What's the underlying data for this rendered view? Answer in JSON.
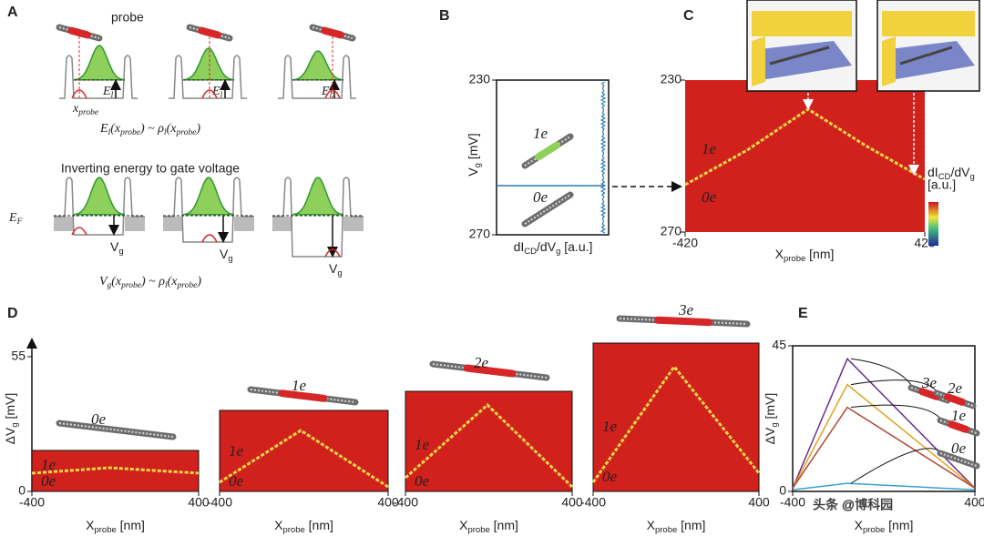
{
  "figure": {
    "A": {
      "label": "A",
      "probe": "probe",
      "x_probe": [
        "x",
        "probe"
      ],
      "E_l": [
        "E",
        "l"
      ],
      "equation_1": [
        "E",
        "l",
        "(x",
        "probe",
        ") ~ ρ",
        "l",
        "(x",
        "probe",
        ")"
      ],
      "subtitle": "Inverting energy to gate voltage",
      "E_F": [
        "E",
        "F"
      ],
      "V_g": [
        "V",
        "g"
      ],
      "equation_2": [
        "V",
        "g",
        "(x",
        "probe",
        ") ~ ρ",
        "l",
        "(x",
        "probe",
        ")"
      ]
    },
    "B": {
      "label": "B",
      "ylim": [
        230,
        270
      ],
      "yticks": [
        230,
        270
      ],
      "ylabel": [
        "V",
        "g",
        " [mV]"
      ],
      "xlabel": [
        "dI",
        "CD",
        "/dV",
        "g",
        " [a.u.]"
      ],
      "state_1": "1e",
      "state_0": "0e"
    },
    "C": {
      "label": "C",
      "xlim": [
        -420,
        420
      ],
      "xticks": [
        -420,
        420
      ],
      "ylim": [
        230,
        270
      ],
      "yticks": [
        230,
        270
      ],
      "xlabel": [
        "X",
        "probe",
        " [nm]"
      ],
      "state_1": "1e",
      "state_0": "0e",
      "colorbar_label": [
        "dI",
        "CD",
        "/dV",
        "g"
      ],
      "colorbar_unit": "[a.u.]"
    },
    "D": {
      "label": "D",
      "ylim": [
        0,
        55
      ],
      "yticks": [
        0,
        55
      ],
      "ylabel": [
        "ΔV",
        "g",
        " [mV]"
      ],
      "xlim": [
        -400,
        400
      ],
      "xticks": [
        -400,
        400
      ],
      "xlabel": [
        "X",
        "probe",
        " [nm]"
      ],
      "charges": [
        "0e",
        "1e",
        "2e",
        "3e"
      ],
      "state_1": "1e",
      "state_0": "0e"
    },
    "E": {
      "label": "E",
      "type": "line",
      "x": [
        -400,
        -160,
        400
      ],
      "series": [
        {
          "name": "3e",
          "color": "#6a2c8c",
          "values": [
            1,
            41,
            1
          ]
        },
        {
          "name": "2e",
          "color": "#e0a325",
          "values": [
            1,
            33,
            1
          ]
        },
        {
          "name": "1e",
          "color": "#b2432c",
          "values": [
            1,
            26,
            1
          ]
        },
        {
          "name": "0e",
          "color": "#3a9fd0",
          "values": [
            0.5,
            2.5,
            0.5
          ]
        }
      ],
      "xlim": [
        -400,
        400
      ],
      "xticks": [
        -400,
        400
      ],
      "ylim": [
        0,
        45
      ],
      "yticks": [
        0,
        45
      ],
      "ylabel": [
        "ΔV",
        "g",
        " [mV]"
      ],
      "xlabel": [
        "X",
        "probe",
        " [nm]"
      ]
    },
    "watermark": "头条 @博科园"
  }
}
